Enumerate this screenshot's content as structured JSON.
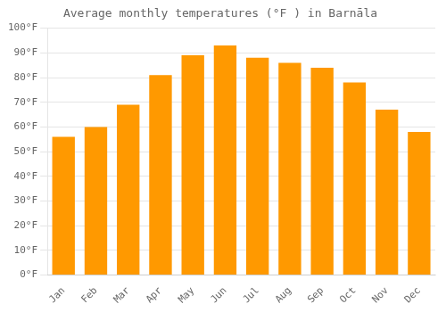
{
  "chart_data": {
    "type": "bar",
    "title": "Average monthly temperatures (°F ) in Barnāla",
    "categories": [
      "Jan",
      "Feb",
      "Mar",
      "Apr",
      "May",
      "Jun",
      "Jul",
      "Aug",
      "Sep",
      "Oct",
      "Nov",
      "Dec"
    ],
    "values": [
      56,
      60,
      69,
      81,
      89,
      93,
      88,
      86,
      84,
      78,
      67,
      58
    ],
    "color": "#ff9900",
    "ylim": [
      0,
      100
    ],
    "yticks": [
      {
        "value": 0,
        "label": "0°F"
      },
      {
        "value": 10,
        "label": "10°F"
      },
      {
        "value": 20,
        "label": "20°F"
      },
      {
        "value": 30,
        "label": "30°F"
      },
      {
        "value": 40,
        "label": "40°F"
      },
      {
        "value": 50,
        "label": "50°F"
      },
      {
        "value": 60,
        "label": "60°F"
      },
      {
        "value": 70,
        "label": "70°F"
      },
      {
        "value": 80,
        "label": "80°F"
      },
      {
        "value": 90,
        "label": "90°F"
      },
      {
        "value": 100,
        "label": "100°F"
      }
    ],
    "grid": true
  }
}
